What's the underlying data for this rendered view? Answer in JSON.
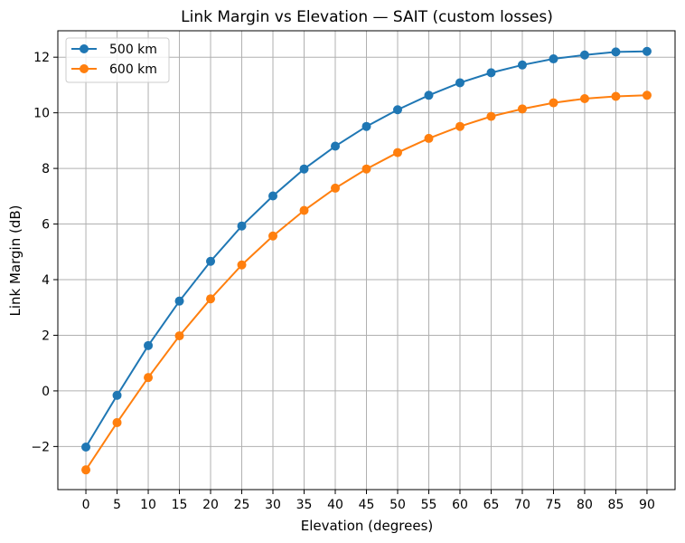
{
  "chart_data": {
    "type": "line",
    "title": "Link Margin vs Elevation — SAIT (custom losses)",
    "xlabel": "Elevation (degrees)",
    "ylabel": "Link Margin (dB)",
    "x": [
      0,
      5,
      10,
      15,
      20,
      25,
      30,
      35,
      40,
      45,
      50,
      55,
      60,
      65,
      70,
      75,
      80,
      85,
      90
    ],
    "xticks": [
      "0",
      "5",
      "10",
      "15",
      "20",
      "25",
      "30",
      "35",
      "40",
      "45",
      "50",
      "55",
      "60",
      "65",
      "70",
      "75",
      "80",
      "85",
      "90"
    ],
    "yticks": [
      -2,
      0,
      2,
      4,
      6,
      8,
      10,
      12
    ],
    "ytick_labels": [
      "−2",
      "0",
      "2",
      "4",
      "6",
      "8",
      "10",
      "12"
    ],
    "xlim": [
      -4.5,
      94.5
    ],
    "ylim": [
      -3.55,
      12.95
    ],
    "grid": true,
    "legend_position": "top-left",
    "series": [
      {
        "name": "500 km",
        "color": "#1f77b4",
        "marker": "circle",
        "values": [
          -2.02,
          -0.16,
          1.63,
          3.23,
          4.66,
          5.93,
          7.01,
          7.98,
          8.8,
          9.51,
          10.11,
          10.63,
          11.08,
          11.44,
          11.72,
          11.94,
          12.08,
          12.19,
          12.21
        ]
      },
      {
        "name": "600 km",
        "color": "#ff7f0e",
        "marker": "circle",
        "values": [
          -2.84,
          -1.14,
          0.48,
          1.98,
          3.31,
          4.53,
          5.57,
          6.49,
          7.29,
          7.98,
          8.57,
          9.08,
          9.51,
          9.87,
          10.14,
          10.36,
          10.51,
          10.59,
          10.63
        ]
      }
    ]
  }
}
